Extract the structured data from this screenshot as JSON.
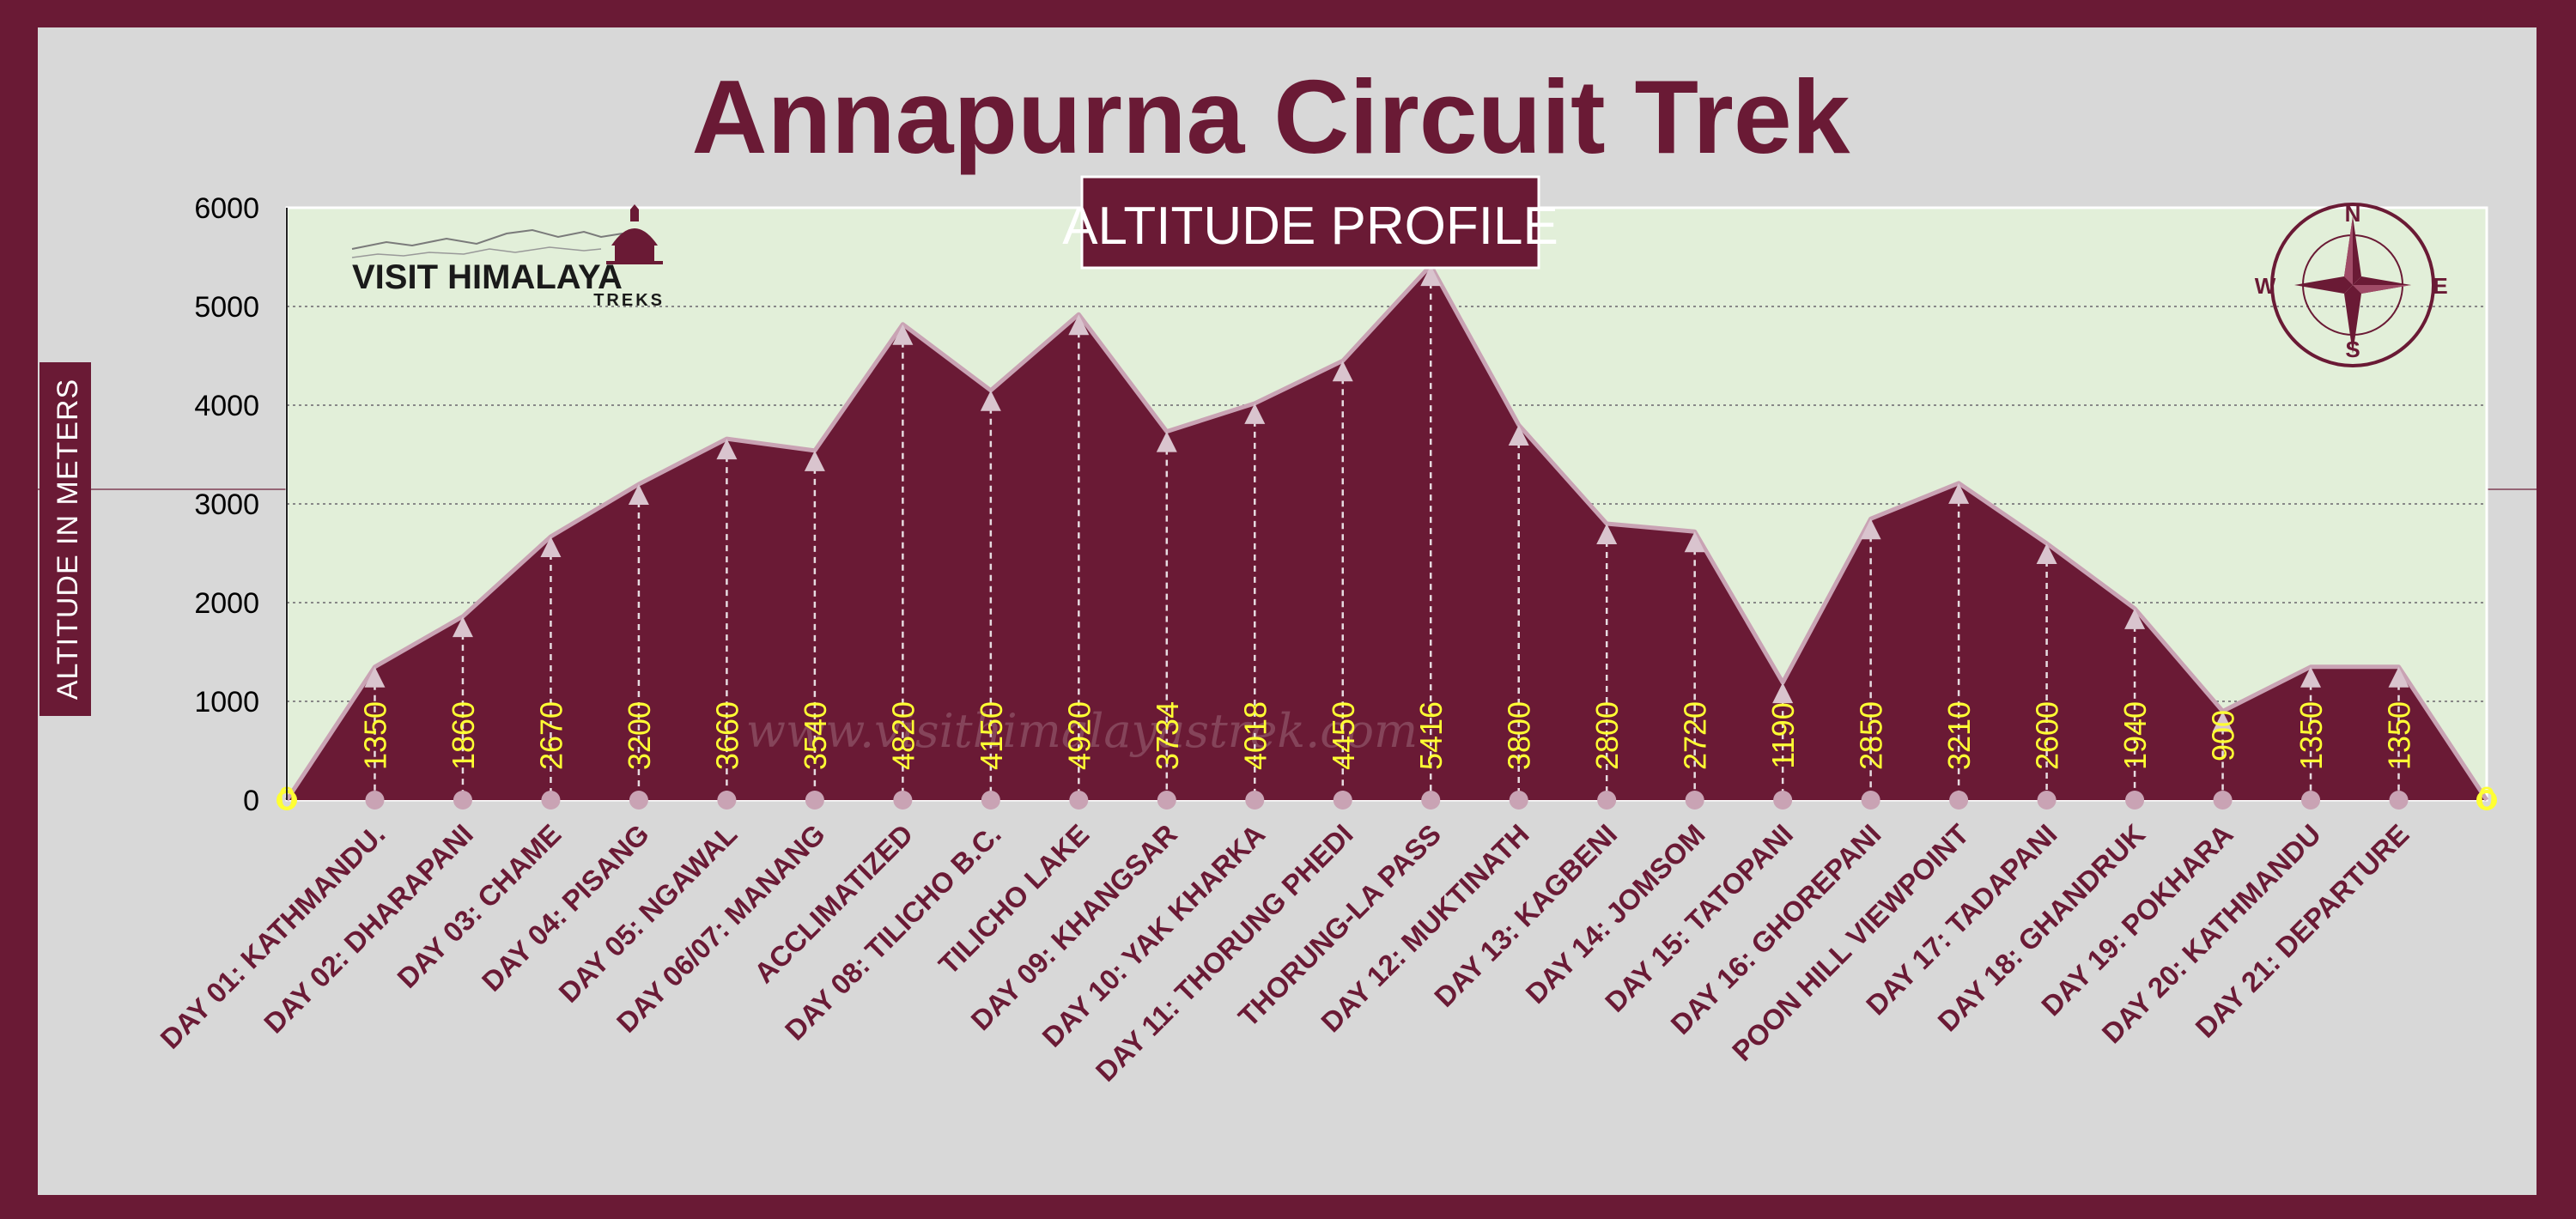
{
  "colors": {
    "border": "#6a1a35",
    "background": "#d8d8d8",
    "plot_bg": "#e2efd9",
    "area_fill": "#6a1a35",
    "area_line": "#c9a3b4",
    "data_label": "#ffff33",
    "gridline": "#888888"
  },
  "title": "Annapurna Circuit Trek",
  "subtitle": "ALTITUDE PROFILE",
  "ylabel": "ALTITUDE IN METERS",
  "logo": {
    "name": "VISIT HIMALAYA",
    "sub": "TREKS"
  },
  "watermark": "www.visithimalayastrek.com",
  "compass": {
    "n": "N",
    "s": "S",
    "e": "E",
    "w": "W"
  },
  "chart_data": {
    "type": "area",
    "title": "Annapurna Circuit Trek",
    "subtitle": "ALTITUDE PROFILE",
    "ylabel": "ALTITUDE IN METERS",
    "xlabel": "",
    "ylim": [
      0,
      6000
    ],
    "yticks": [
      0,
      1000,
      2000,
      3000,
      4000,
      5000,
      6000
    ],
    "grid": true,
    "categories": [
      "DAY 01: KATHMANDU.",
      "DAY 02: DHARAPANI",
      "DAY 03: CHAME",
      "DAY 04: PISANG",
      "DAY 05: NGAWAL",
      "DAY 06/07: MANANG",
      "ACCLIMATIZED",
      "DAY 08: TILICHO B.C.",
      "TILICHO LAKE",
      "DAY 09: KHANGSAR",
      "DAY 10: YAK KHARKA",
      "DAY 11: THORUNG PHEDI",
      "THORUNG-LA PASS",
      "DAY 12: MUKTINATH",
      "DAY 13: KAGBENI",
      "DAY 14: JOMSOM",
      "DAY 15: TATOPANI",
      "DAY 16: GHOREPANI",
      "POON HILL VIEWPOINT",
      "DAY 17: TADAPANI",
      "DAY 18: GHANDRUK",
      "DAY 19: POKHARA",
      "DAY 20: KATHMANDU",
      "DAY 21: DEPARTURE"
    ],
    "values": [
      1350,
      1860,
      2670,
      3200,
      3660,
      3540,
      4820,
      4150,
      4920,
      3734,
      4018,
      4450,
      5416,
      3800,
      2800,
      2720,
      1190,
      2850,
      3210,
      2600,
      1940,
      900,
      1350,
      1350
    ],
    "start_point": {
      "label": "0",
      "value": 0
    },
    "end_point": {
      "label": "0",
      "value": 0
    }
  }
}
